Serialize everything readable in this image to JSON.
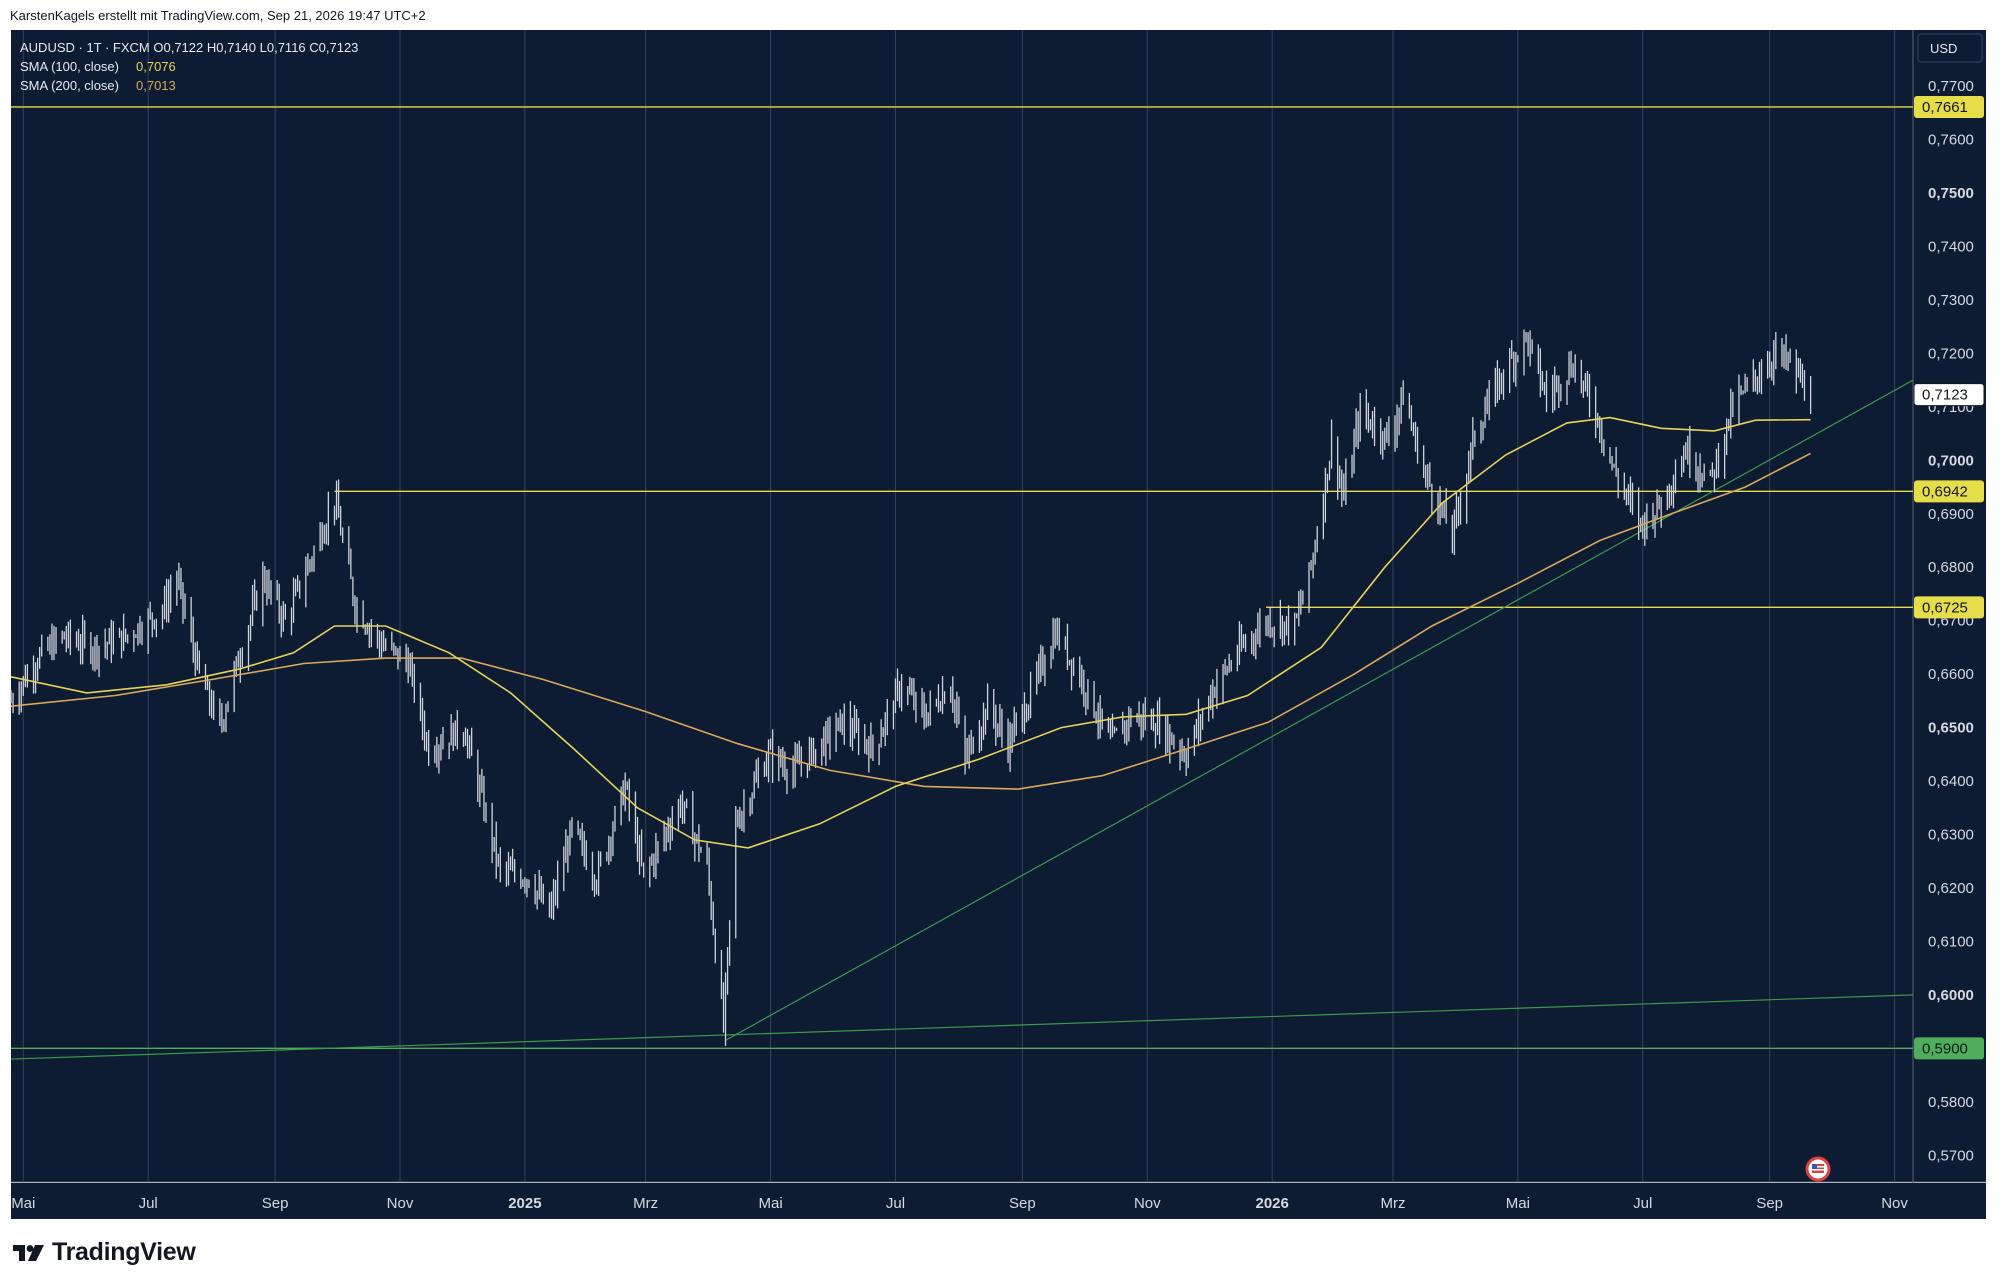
{
  "header": {
    "credit": "KarstenKagels erstellt mit TradingView.com, Sep 21, 2026 19:47 UTC+2"
  },
  "legend": {
    "symbol_line": "AUDUSD · 1T · FXCM  O0,7122  H0,7140  L0,7116  C0,7123",
    "sma100_label": "SMA (100, close)",
    "sma100_value": "0,7076",
    "sma200_label": "SMA (200, close)",
    "sma200_value": "0,7013"
  },
  "currency_button": "USD",
  "footer": {
    "brand": "TradingView"
  },
  "colors": {
    "background": "#0d1b33",
    "candles": "#cfd3dc",
    "sma100": "#e6d35a",
    "sma200": "#d9a85c",
    "horizontal_levels": "#e6dd4a",
    "trendlines": "#3c9a4a",
    "grid": "#34415c",
    "axis_text": "#131722"
  },
  "chart_data": {
    "type": "candlestick",
    "symbol": "AUDUSD",
    "timeframe": "1T",
    "ylim": [
      0.565,
      0.7805
    ],
    "y_ticks": [
      "0,7700",
      "0,7600",
      "0,7500",
      "0,7400",
      "0,7300",
      "0,7200",
      "0,7100",
      "0,7000",
      "0,6900",
      "0,6800",
      "0,6700",
      "0,6600",
      "0,6500",
      "0,6400",
      "0,6300",
      "0,6200",
      "0,6100",
      "0,6000",
      "0,5900",
      "0,5800",
      "0,5700"
    ],
    "bold_ticks": [
      "0,7500",
      "0,7000",
      "0,6500",
      "0,6000"
    ],
    "x_ticks": [
      {
        "label": "Mai",
        "date": "2024-05-01"
      },
      {
        "label": "Jul",
        "date": "2024-07-01"
      },
      {
        "label": "Sep",
        "date": "2024-09-01"
      },
      {
        "label": "Nov",
        "date": "2024-11-01"
      },
      {
        "label": "2025",
        "date": "2025-01-01",
        "bold": true
      },
      {
        "label": "Mrz",
        "date": "2025-03-01"
      },
      {
        "label": "Mai",
        "date": "2025-05-01"
      },
      {
        "label": "Jul",
        "date": "2025-07-01"
      },
      {
        "label": "Sep",
        "date": "2025-09-01"
      },
      {
        "label": "Nov",
        "date": "2025-11-01"
      },
      {
        "label": "2026",
        "date": "2026-01-01",
        "bold": true
      },
      {
        "label": "Mrz",
        "date": "2026-03-01"
      },
      {
        "label": "Mai",
        "date": "2026-05-01"
      },
      {
        "label": "Jul",
        "date": "2026-07-01"
      },
      {
        "label": "Sep",
        "date": "2026-09-01"
      },
      {
        "label": "Nov",
        "date": "2026-11-01"
      }
    ],
    "x_range": [
      "2024-04-25",
      "2026-11-10"
    ],
    "price_path": [
      [
        "2024-04-25",
        0.655
      ],
      [
        "2024-05-08",
        0.663
      ],
      [
        "2024-05-20",
        0.667
      ],
      [
        "2024-06-05",
        0.665
      ],
      [
        "2024-06-20",
        0.667
      ],
      [
        "2024-07-08",
        0.672
      ],
      [
        "2024-07-15",
        0.678
      ],
      [
        "2024-07-26",
        0.66
      ],
      [
        "2024-08-05",
        0.65
      ],
      [
        "2024-08-15",
        0.664
      ],
      [
        "2024-08-26",
        0.678
      ],
      [
        "2024-09-06",
        0.67
      ],
      [
        "2024-09-20",
        0.683
      ],
      [
        "2024-09-30",
        0.693
      ],
      [
        "2024-10-10",
        0.673
      ],
      [
        "2024-10-22",
        0.666
      ],
      [
        "2024-11-05",
        0.662
      ],
      [
        "2024-11-15",
        0.646
      ],
      [
        "2024-12-02",
        0.65
      ],
      [
        "2024-12-20",
        0.623
      ],
      [
        "2025-01-03",
        0.622
      ],
      [
        "2025-01-13",
        0.615
      ],
      [
        "2025-01-24",
        0.631
      ],
      [
        "2025-02-05",
        0.622
      ],
      [
        "2025-02-19",
        0.639
      ],
      [
        "2025-02-28",
        0.622
      ],
      [
        "2025-03-18",
        0.636
      ],
      [
        "2025-03-31",
        0.624
      ],
      [
        "2025-04-08",
        0.594
      ],
      [
        "2025-04-14",
        0.632
      ],
      [
        "2025-04-30",
        0.645
      ],
      [
        "2025-05-12",
        0.642
      ],
      [
        "2025-05-26",
        0.647
      ],
      [
        "2025-06-05",
        0.651
      ],
      [
        "2025-06-20",
        0.646
      ],
      [
        "2025-07-04",
        0.658
      ],
      [
        "2025-07-15",
        0.652
      ],
      [
        "2025-07-28",
        0.658
      ],
      [
        "2025-08-04",
        0.644
      ],
      [
        "2025-08-15",
        0.654
      ],
      [
        "2025-08-25",
        0.647
      ],
      [
        "2025-09-05",
        0.656
      ],
      [
        "2025-09-17",
        0.668
      ],
      [
        "2025-09-30",
        0.659
      ],
      [
        "2025-10-14",
        0.647
      ],
      [
        "2025-10-24",
        0.652
      ],
      [
        "2025-11-05",
        0.651
      ],
      [
        "2025-11-20",
        0.645
      ],
      [
        "2025-12-03",
        0.657
      ],
      [
        "2025-12-15",
        0.664
      ],
      [
        "2025-12-29",
        0.67
      ],
      [
        "2026-01-12",
        0.669
      ],
      [
        "2026-01-20",
        0.68
      ],
      [
        "2026-01-30",
        0.703
      ],
      [
        "2026-02-05",
        0.693
      ],
      [
        "2026-02-13",
        0.709
      ],
      [
        "2026-02-27",
        0.704
      ],
      [
        "2026-03-06",
        0.712
      ],
      [
        "2026-03-16",
        0.698
      ],
      [
        "2026-03-30",
        0.686
      ],
      [
        "2026-04-10",
        0.705
      ],
      [
        "2026-04-22",
        0.715
      ],
      [
        "2026-05-05",
        0.723
      ],
      [
        "2026-05-15",
        0.712
      ],
      [
        "2026-05-28",
        0.718
      ],
      [
        "2026-06-08",
        0.709
      ],
      [
        "2026-06-16",
        0.699
      ],
      [
        "2026-06-30",
        0.688
      ],
      [
        "2026-07-10",
        0.692
      ],
      [
        "2026-07-22",
        0.702
      ],
      [
        "2026-08-03",
        0.696
      ],
      [
        "2026-08-14",
        0.71
      ],
      [
        "2026-08-24",
        0.715
      ],
      [
        "2026-09-04",
        0.72
      ],
      [
        "2026-09-11",
        0.718
      ],
      [
        "2026-09-21",
        0.7123
      ]
    ],
    "sma100": [
      [
        "2024-04-25",
        0.6595
      ],
      [
        "2024-06-01",
        0.6565
      ],
      [
        "2024-07-10",
        0.658
      ],
      [
        "2024-08-15",
        0.661
      ],
      [
        "2024-09-10",
        0.664
      ],
      [
        "2024-09-30",
        0.669
      ],
      [
        "2024-10-25",
        0.669
      ],
      [
        "2024-11-25",
        0.664
      ],
      [
        "2024-12-25",
        0.6565
      ],
      [
        "2025-01-25",
        0.646
      ],
      [
        "2025-02-25",
        0.635
      ],
      [
        "2025-03-25",
        0.629
      ],
      [
        "2025-04-20",
        0.6275
      ],
      [
        "2025-05-25",
        0.632
      ],
      [
        "2025-07-01",
        0.639
      ],
      [
        "2025-08-10",
        0.644
      ],
      [
        "2025-09-20",
        0.65
      ],
      [
        "2025-10-20",
        0.652
      ],
      [
        "2025-11-20",
        0.6525
      ],
      [
        "2025-12-20",
        0.656
      ],
      [
        "2026-01-25",
        0.665
      ],
      [
        "2026-02-25",
        0.68
      ],
      [
        "2026-03-25",
        0.692
      ],
      [
        "2026-04-25",
        0.701
      ],
      [
        "2026-05-25",
        0.707
      ],
      [
        "2026-06-15",
        0.708
      ],
      [
        "2026-07-10",
        0.706
      ],
      [
        "2026-08-05",
        0.7055
      ],
      [
        "2026-08-25",
        0.7075
      ],
      [
        "2026-09-21",
        0.7076
      ]
    ],
    "sma200": [
      [
        "2024-04-25",
        0.654
      ],
      [
        "2024-06-15",
        0.656
      ],
      [
        "2024-08-01",
        0.659
      ],
      [
        "2024-09-15",
        0.662
      ],
      [
        "2024-10-25",
        0.663
      ],
      [
        "2024-12-01",
        0.663
      ],
      [
        "2025-01-10",
        0.659
      ],
      [
        "2025-03-01",
        0.653
      ],
      [
        "2025-04-15",
        0.647
      ],
      [
        "2025-05-30",
        0.642
      ],
      [
        "2025-07-15",
        0.639
      ],
      [
        "2025-08-30",
        0.6385
      ],
      [
        "2025-10-10",
        0.641
      ],
      [
        "2025-11-20",
        0.646
      ],
      [
        "2025-12-30",
        0.651
      ],
      [
        "2026-02-10",
        0.66
      ],
      [
        "2026-03-20",
        0.669
      ],
      [
        "2026-05-01",
        0.677
      ],
      [
        "2026-06-10",
        0.685
      ],
      [
        "2026-07-15",
        0.69
      ],
      [
        "2026-08-20",
        0.695
      ],
      [
        "2026-09-21",
        0.7013
      ]
    ],
    "horizontal_levels": [
      {
        "value": 0.7661,
        "label": "0,7661",
        "from": "2024-04-25",
        "color": "#e6dd4a"
      },
      {
        "value": 0.6942,
        "label": "0,6942",
        "from": "2024-09-30",
        "color": "#e6dd4a"
      },
      {
        "value": 0.6725,
        "label": "0,6725",
        "from": "2025-12-29",
        "color": "#e6dd4a"
      },
      {
        "value": 0.59,
        "label": "0,5900",
        "from": "2024-04-25",
        "color": "#4fae5c"
      }
    ],
    "trendlines": [
      {
        "from": [
          "2025-04-09",
          0.5915
        ],
        "to": [
          "2026-11-10",
          0.715
        ]
      },
      {
        "from": [
          "2024-04-25",
          0.588
        ],
        "to": [
          "2026-11-10",
          0.6
        ]
      }
    ],
    "last_price": {
      "value": 0.7123,
      "label": "0,7123"
    }
  }
}
